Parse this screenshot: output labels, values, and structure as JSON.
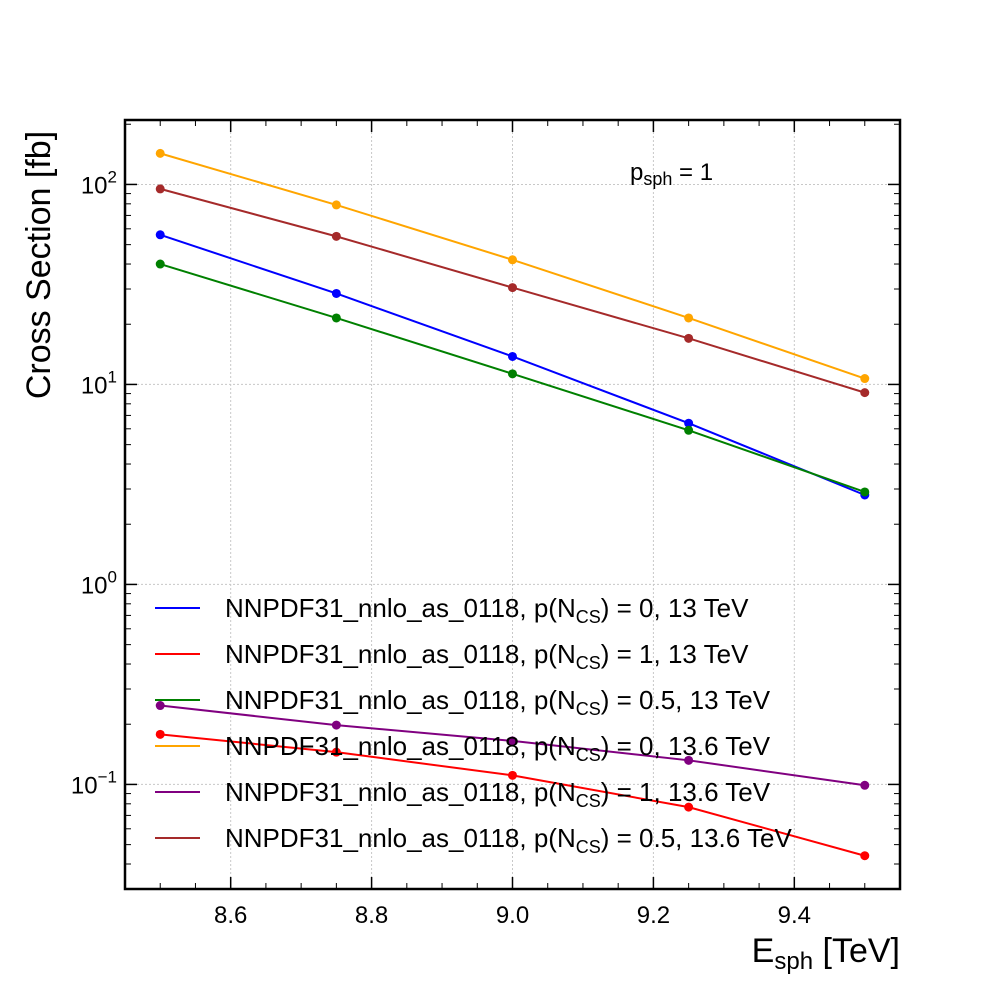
{
  "chart_data": {
    "type": "line",
    "xlabel": {
      "main": "E",
      "sub": "sph",
      "unit": " [TeV]"
    },
    "ylabel": "Cross Section [fb]",
    "xlim": [
      8.45,
      9.55
    ],
    "ylim": [
      0.03,
      210
    ],
    "yscale": "log",
    "grid": true,
    "legend_position": "lower-left",
    "x_ticks": [
      "8.6",
      "8.8",
      "9.0",
      "9.2",
      "9.4"
    ],
    "y_ticks": [
      {
        "base": "10",
        "exp": "2"
      },
      {
        "base": "10",
        "exp": "1"
      },
      {
        "base": "10",
        "exp": "0"
      },
      {
        "base": "10",
        "exp": "−1"
      }
    ],
    "annotation": {
      "main": "p",
      "sub": "sph",
      "rest": " = 1"
    },
    "x": [
      8.5,
      8.75,
      9.0,
      9.25,
      9.5
    ],
    "series": [
      {
        "name": "NNPDF31_nnlo_as_0118, p(N_CS) = 0, 13 TeV",
        "label": {
          "pre": "NNPDF31_nnlo_as_0118, p(N",
          "sub": "CS",
          "post": ") = 0, 13 TeV"
        },
        "color": "#0000ff",
        "values": [
          56,
          28.5,
          13.8,
          6.4,
          2.8
        ]
      },
      {
        "name": "NNPDF31_nnlo_as_0118, p(N_CS) = 1, 13 TeV",
        "label": {
          "pre": "NNPDF31_nnlo_as_0118, p(N",
          "sub": "CS",
          "post": ") = 1, 13 TeV"
        },
        "color": "#ff0000",
        "values": [
          0.178,
          0.145,
          0.111,
          0.077,
          0.044
        ]
      },
      {
        "name": "NNPDF31_nnlo_as_0118, p(N_CS) = 0.5, 13 TeV",
        "label": {
          "pre": "NNPDF31_nnlo_as_0118, p(N",
          "sub": "CS",
          "post": ") = 0.5, 13 TeV"
        },
        "color": "#008000",
        "values": [
          40,
          21.5,
          11.3,
          5.9,
          2.9
        ]
      },
      {
        "name": "NNPDF31_nnlo_as_0118, p(N_CS) = 0, 13.6 TeV",
        "label": {
          "pre": "NNPDF31_nnlo_as_0118, p(N",
          "sub": "CS",
          "post": ") = 0, 13.6 TeV"
        },
        "color": "#ffa500",
        "values": [
          143,
          79,
          42,
          21.5,
          10.7
        ]
      },
      {
        "name": "NNPDF31_nnlo_as_0118, p(N_CS) = 1, 13.6 TeV",
        "label": {
          "pre": "NNPDF31_nnlo_as_0118, p(N",
          "sub": "CS",
          "post": ") = 1, 13.6 TeV"
        },
        "color": "#800080",
        "values": [
          0.248,
          0.198,
          0.165,
          0.132,
          0.099
        ]
      },
      {
        "name": "NNPDF31_nnlo_as_0118, p(N_CS) = 0.5, 13.6 TeV",
        "label": {
          "pre": "NNPDF31_nnlo_as_0118, p(N",
          "sub": "CS",
          "post": ") = 0.5, 13.6 TeV"
        },
        "color": "#a52a2a",
        "values": [
          95,
          55,
          30.5,
          17,
          9.1
        ]
      }
    ]
  }
}
